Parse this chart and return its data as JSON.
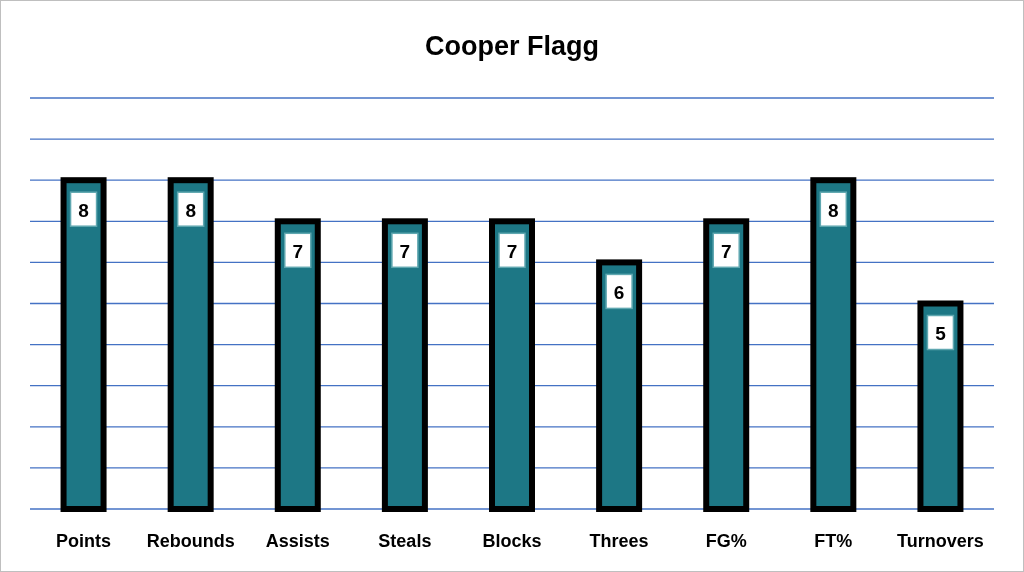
{
  "chart_data": {
    "type": "bar",
    "title": "Cooper Flagg",
    "categories": [
      "Points",
      "Rebounds",
      "Assists",
      "Steals",
      "Blocks",
      "Threes",
      "FG%",
      "FT%",
      "Turnovers"
    ],
    "values": [
      8,
      8,
      7,
      7,
      7,
      6,
      7,
      8,
      5
    ],
    "color": "#1d7785",
    "ylim": [
      0,
      10
    ],
    "yticks": [
      {
        "value": 0,
        "label": null
      },
      {
        "value": 1,
        "label": null
      },
      {
        "value": 2,
        "label": null
      },
      {
        "value": 3,
        "label": null
      },
      {
        "value": 4,
        "label": null
      },
      {
        "value": 5,
        "label": null
      },
      {
        "value": 6,
        "label": null
      },
      {
        "value": 7,
        "label": null
      },
      {
        "value": 8,
        "label": null
      },
      {
        "value": 9,
        "label": null
      },
      {
        "value": 10,
        "label": null
      }
    ],
    "grid": "y",
    "tick_labels": "x",
    "data_labels": true
  }
}
